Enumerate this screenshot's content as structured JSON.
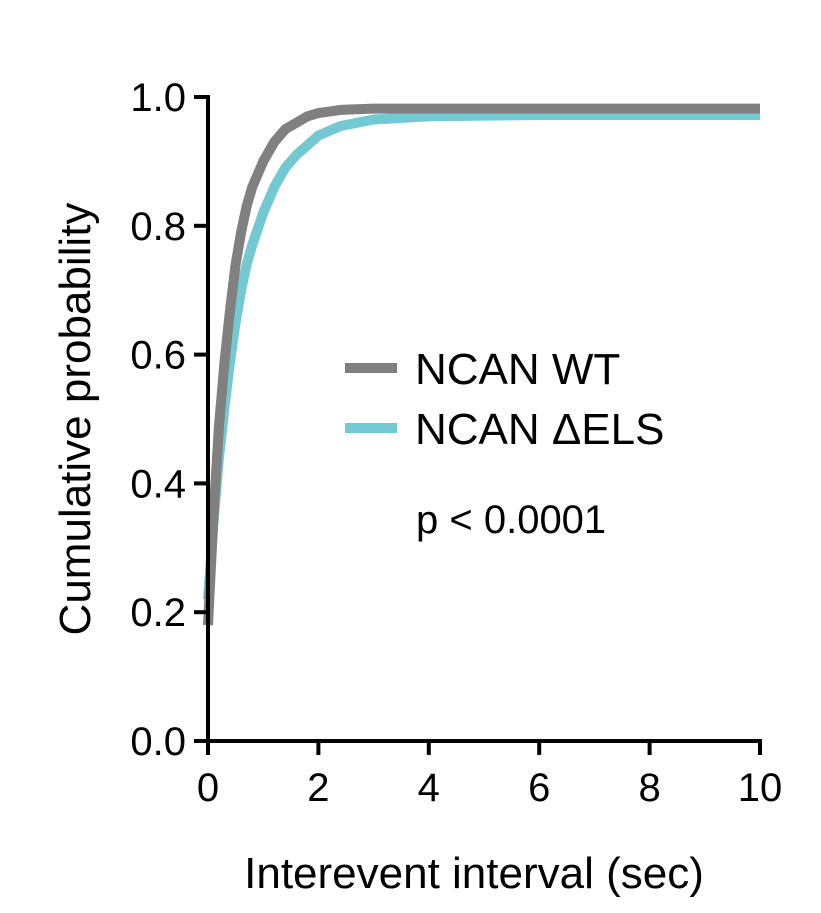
{
  "chart_data": {
    "type": "line",
    "xlabel": "Interevent interval (sec)",
    "ylabel": "Cumulative probability",
    "xlim": [
      0,
      10
    ],
    "ylim": [
      0,
      1.0
    ],
    "x_ticks": [
      "0",
      "2",
      "4",
      "6",
      "8",
      "10"
    ],
    "y_ticks": [
      "0.0",
      "0.2",
      "0.4",
      "0.6",
      "0.8",
      "1.0"
    ],
    "grid": false,
    "legend_position": "center-right",
    "series": [
      {
        "name": "NCAN WT",
        "color": "#808080",
        "x": [
          0,
          0.1,
          0.2,
          0.3,
          0.4,
          0.5,
          0.6,
          0.7,
          0.8,
          1.0,
          1.2,
          1.4,
          1.6,
          1.8,
          2.0,
          2.4,
          3.0,
          4.0,
          6.0,
          8.0,
          10.0
        ],
        "y": [
          0.18,
          0.35,
          0.49,
          0.59,
          0.67,
          0.74,
          0.79,
          0.83,
          0.86,
          0.9,
          0.93,
          0.95,
          0.96,
          0.97,
          0.975,
          0.98,
          0.982,
          0.982,
          0.982,
          0.982,
          0.982
        ]
      },
      {
        "name": "NCAN ΔELS",
        "color": "#73c9d2",
        "x": [
          0,
          0.1,
          0.2,
          0.3,
          0.4,
          0.5,
          0.6,
          0.7,
          0.8,
          1.0,
          1.2,
          1.4,
          1.6,
          1.8,
          2.0,
          2.4,
          3.0,
          4.0,
          6.0,
          8.0,
          10.0
        ],
        "y": [
          0.22,
          0.34,
          0.44,
          0.52,
          0.59,
          0.65,
          0.7,
          0.74,
          0.77,
          0.82,
          0.86,
          0.89,
          0.91,
          0.925,
          0.94,
          0.955,
          0.965,
          0.97,
          0.972,
          0.972,
          0.972
        ]
      }
    ],
    "annotations": [
      "p < 0.0001"
    ]
  }
}
